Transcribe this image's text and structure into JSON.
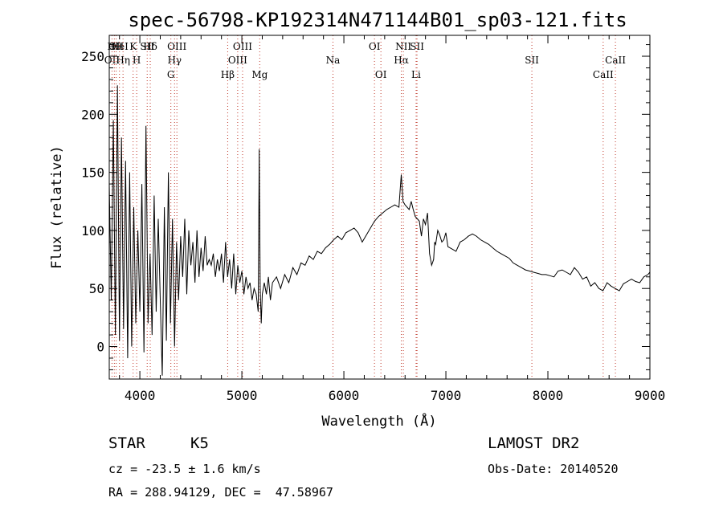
{
  "title": "spec-56798-KP192314N471144B01_sp03-121.fits",
  "info": {
    "class": "STAR",
    "subclass": "K5",
    "survey": "LAMOST DR2",
    "cz": "cz = -23.5 ± 1.6 km/s",
    "obs_date": "Obs-Date: 20140520",
    "radec": "RA = 288.94129, DEC =  47.58967"
  },
  "chart_data": {
    "type": "line",
    "title": "spec-56798-KP192314N471144B01_sp03-121.fits",
    "xlabel": "Wavelength (Å)",
    "ylabel": "Flux (relative)",
    "xlim": [
      3700,
      9000
    ],
    "ylim": [
      -28,
      268
    ],
    "xticks": [
      4000,
      5000,
      6000,
      7000,
      8000,
      9000
    ],
    "yticks": [
      0,
      50,
      100,
      150,
      200,
      250
    ],
    "series": [
      {
        "x": [
          3700,
          3720,
          3740,
          3760,
          3780,
          3800,
          3820,
          3840,
          3860,
          3880,
          3900,
          3920,
          3940,
          3960,
          3980,
          4000,
          4020,
          4040,
          4060,
          4080,
          4100,
          4120,
          4140,
          4160,
          4180,
          4200,
          4220,
          4240,
          4260,
          4280,
          4300,
          4320,
          4340,
          4360,
          4380,
          4400,
          4420,
          4440,
          4460,
          4480,
          4500,
          4520,
          4540,
          4560,
          4580,
          4600,
          4620,
          4640,
          4660,
          4680,
          4700,
          4720,
          4740,
          4760,
          4780,
          4800,
          4820,
          4840,
          4860,
          4880,
          4900,
          4920,
          4940,
          4960,
          4980,
          5000,
          5020,
          5040,
          5060,
          5080,
          5100,
          5120,
          5140,
          5160,
          5170,
          5180,
          5190,
          5200,
          5220,
          5240,
          5260,
          5280,
          5300,
          5340,
          5380,
          5420,
          5460,
          5500,
          5540,
          5580,
          5620,
          5660,
          5700,
          5740,
          5780,
          5820,
          5860,
          5900,
          5940,
          5980,
          6020,
          6060,
          6100,
          6140,
          6180,
          6220,
          6260,
          6300,
          6340,
          6380,
          6420,
          6460,
          6500,
          6540,
          6563,
          6580,
          6600,
          6620,
          6640,
          6660,
          6680,
          6700,
          6720,
          6740,
          6760,
          6780,
          6800,
          6820,
          6840,
          6860,
          6880,
          6890,
          6900,
          6920,
          6940,
          6960,
          6980,
          7000,
          7020,
          7060,
          7100,
          7140,
          7180,
          7220,
          7260,
          7300,
          7340,
          7380,
          7420,
          7460,
          7500,
          7540,
          7580,
          7620,
          7660,
          7700,
          7740,
          7780,
          7820,
          7860,
          7900,
          7940,
          7980,
          8020,
          8060,
          8100,
          8140,
          8180,
          8220,
          8260,
          8300,
          8340,
          8380,
          8420,
          8460,
          8500,
          8540,
          8580,
          8620,
          8660,
          8700,
          8740,
          8780,
          8820,
          8860,
          8900,
          8940,
          8980,
          9000
        ],
        "y": [
          140,
          40,
          195,
          10,
          225,
          5,
          180,
          15,
          160,
          -10,
          150,
          0,
          120,
          20,
          100,
          30,
          140,
          -5,
          190,
          20,
          80,
          10,
          130,
          30,
          110,
          40,
          -25,
          120,
          5,
          150,
          20,
          110,
          0,
          90,
          40,
          95,
          60,
          110,
          45,
          100,
          70,
          90,
          55,
          100,
          60,
          85,
          65,
          95,
          70,
          75,
          70,
          80,
          60,
          75,
          65,
          80,
          55,
          90,
          60,
          75,
          50,
          80,
          45,
          70,
          55,
          65,
          45,
          60,
          50,
          55,
          40,
          50,
          45,
          30,
          170,
          50,
          20,
          45,
          55,
          45,
          60,
          40,
          55,
          60,
          50,
          62,
          55,
          68,
          62,
          72,
          70,
          78,
          75,
          82,
          80,
          85,
          88,
          92,
          95,
          92,
          98,
          100,
          102,
          98,
          90,
          96,
          102,
          108,
          112,
          115,
          118,
          120,
          122,
          120,
          148,
          125,
          122,
          120,
          118,
          125,
          118,
          112,
          110,
          108,
          95,
          110,
          105,
          115,
          80,
          70,
          75,
          90,
          88,
          100,
          96,
          90,
          92,
          98,
          86,
          84,
          82,
          90,
          92,
          95,
          97,
          95,
          92,
          90,
          88,
          85,
          82,
          80,
          78,
          76,
          72,
          70,
          68,
          66,
          65,
          64,
          63,
          62,
          62,
          61,
          60,
          65,
          66,
          64,
          62,
          68,
          64,
          58,
          60,
          52,
          55,
          50,
          48,
          55,
          52,
          50,
          48,
          54,
          56,
          58,
          56,
          55,
          60,
          62,
          64
        ]
      }
    ],
    "lines": [
      {
        "label": "OII",
        "x": 3727,
        "row": 1
      },
      {
        "label": "Hθ",
        "x": 3750,
        "row": 0
      },
      {
        "label": "OII",
        "x": 3768,
        "row": 0
      },
      {
        "label": "HeI",
        "x": 3800,
        "row": 0
      },
      {
        "label": "Hη",
        "x": 3835,
        "row": 1
      },
      {
        "label": "K",
        "x": 3934,
        "row": 0
      },
      {
        "label": "H",
        "x": 3969,
        "row": 1
      },
      {
        "label": "SII",
        "x": 4072,
        "row": 0
      },
      {
        "label": "Hδ",
        "x": 4102,
        "row": 0
      },
      {
        "label": "Hγ",
        "x": 4340,
        "row": 1
      },
      {
        "label": "G",
        "x": 4304,
        "row": 2
      },
      {
        "label": "OIII",
        "x": 4363,
        "row": 0
      },
      {
        "label": "Hβ",
        "x": 4861,
        "row": 2
      },
      {
        "label": "OIII",
        "x": 4959,
        "row": 1
      },
      {
        "label": "OIII",
        "x": 5007,
        "row": 0
      },
      {
        "label": "Mg",
        "x": 5175,
        "row": 2
      },
      {
        "label": "Na",
        "x": 5893,
        "row": 1
      },
      {
        "label": "OI",
        "x": 6300,
        "row": 0
      },
      {
        "label": "OI",
        "x": 6363,
        "row": 2
      },
      {
        "label": "Hα",
        "x": 6563,
        "row": 1
      },
      {
        "label": "NII",
        "x": 6583,
        "row": 0
      },
      {
        "label": "Li",
        "x": 6708,
        "row": 2
      },
      {
        "label": "SII",
        "x": 6717,
        "row": 0
      },
      {
        "label": "SII",
        "x": 7843,
        "row": 1
      },
      {
        "label": "CaII",
        "x": 8542,
        "row": 2
      },
      {
        "label": "CaII",
        "x": 8662,
        "row": 1
      }
    ],
    "grid": false,
    "legend": "none"
  }
}
